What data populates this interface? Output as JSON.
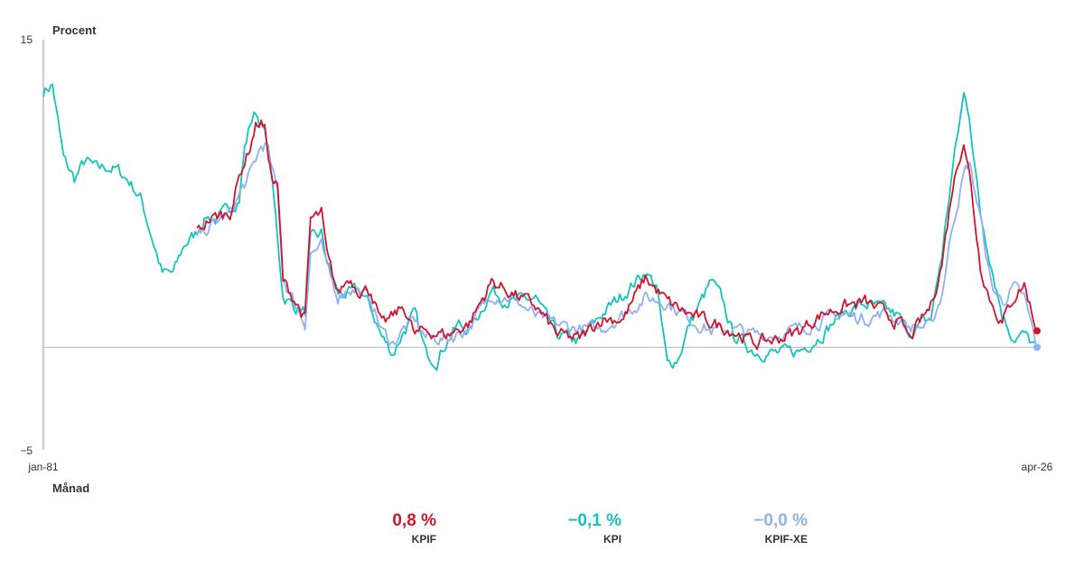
{
  "chart_data": {
    "type": "line",
    "ylabel": "Procent",
    "xlabel": "Månad",
    "ylim": [
      -5,
      15
    ],
    "y_ticks": [
      {
        "value": 15,
        "label": "15"
      },
      {
        "value": -5,
        "label": "−5"
      }
    ],
    "x_start": "1981-01",
    "x_end": "2026-04",
    "x_tick_labels": [
      "jan-81",
      "apr-26"
    ],
    "baseline": 0,
    "legend_placement": "bottom",
    "series": [
      {
        "name": "KPIF",
        "color": "#d0142c",
        "points": [
          [
            "1988-01",
            5.6
          ],
          [
            "1988-07",
            6.2
          ],
          [
            "1989-01",
            6.4
          ],
          [
            "1989-07",
            6.6
          ],
          [
            "1990-01",
            8.6
          ],
          [
            "1990-06",
            9.8
          ],
          [
            "1990-09",
            10.8
          ],
          [
            "1990-12",
            11.0
          ],
          [
            "1991-02",
            10.6
          ],
          [
            "1991-06",
            8.2
          ],
          [
            "1991-09",
            7.8
          ],
          [
            "1991-12",
            3.2
          ],
          [
            "1992-06",
            2.4
          ],
          [
            "1992-12",
            1.4
          ],
          [
            "1993-03",
            6.2
          ],
          [
            "1993-09",
            6.5
          ],
          [
            "1993-12",
            4.4
          ],
          [
            "1994-06",
            2.6
          ],
          [
            "1994-12",
            3.4
          ],
          [
            "1995-06",
            2.8
          ],
          [
            "1995-12",
            2.8
          ],
          [
            "1996-06",
            1.0
          ],
          [
            "1997-06",
            2.0
          ],
          [
            "1997-12",
            0.6
          ],
          [
            "1998-06",
            0.8
          ],
          [
            "1999-06",
            0.6
          ],
          [
            "2000-06",
            1.2
          ],
          [
            "2001-06",
            3.2
          ],
          [
            "2002-06",
            2.6
          ],
          [
            "2003-06",
            2.0
          ],
          [
            "2004-06",
            0.6
          ],
          [
            "2005-06",
            0.4
          ],
          [
            "2006-06",
            1.4
          ],
          [
            "2007-06",
            1.4
          ],
          [
            "2008-06",
            3.4
          ],
          [
            "2009-06",
            2.2
          ],
          [
            "2010-06",
            1.6
          ],
          [
            "2011-06",
            1.2
          ],
          [
            "2012-06",
            0.8
          ],
          [
            "2013-06",
            0.2
          ],
          [
            "2014-06",
            0.4
          ],
          [
            "2015-06",
            0.8
          ],
          [
            "2016-06",
            1.6
          ],
          [
            "2017-06",
            2.0
          ],
          [
            "2018-06",
            2.2
          ],
          [
            "2019-06",
            1.6
          ],
          [
            "2020-03",
            1.0
          ],
          [
            "2020-06",
            0.4
          ],
          [
            "2021-06",
            2.0
          ],
          [
            "2021-12",
            4.1
          ],
          [
            "2022-06",
            7.9
          ],
          [
            "2022-12",
            10.2
          ],
          [
            "2023-03",
            8.5
          ],
          [
            "2023-09",
            4.0
          ],
          [
            "2024-03",
            2.2
          ],
          [
            "2024-09",
            1.2
          ],
          [
            "2025-03",
            2.4
          ],
          [
            "2025-09",
            3.1
          ],
          [
            "2026-04",
            0.8
          ]
        ]
      },
      {
        "name": "KPI",
        "color": "#14c3bd",
        "points": [
          [
            "1981-01",
            12.5
          ],
          [
            "1981-06",
            12.8
          ],
          [
            "1981-12",
            9.2
          ],
          [
            "1982-06",
            8.2
          ],
          [
            "1982-12",
            9.1
          ],
          [
            "1983-06",
            8.7
          ],
          [
            "1983-12",
            8.8
          ],
          [
            "1984-06",
            8.6
          ],
          [
            "1984-12",
            8.1
          ],
          [
            "1985-06",
            7.3
          ],
          [
            "1985-12",
            5.5
          ],
          [
            "1986-06",
            3.6
          ],
          [
            "1986-12",
            3.6
          ],
          [
            "1987-06",
            5.0
          ],
          [
            "1987-12",
            5.5
          ],
          [
            "1988-06",
            6.4
          ],
          [
            "1988-12",
            6.2
          ],
          [
            "1989-06",
            6.7
          ],
          [
            "1989-12",
            7.3
          ],
          [
            "1990-03",
            9.7
          ],
          [
            "1990-06",
            10.9
          ],
          [
            "1990-09",
            11.5
          ],
          [
            "1990-12",
            10.9
          ],
          [
            "1991-03",
            10.1
          ],
          [
            "1991-06",
            8.1
          ],
          [
            "1991-12",
            2.5
          ],
          [
            "1992-06",
            2.0
          ],
          [
            "1992-12",
            1.7
          ],
          [
            "1993-03",
            5.2
          ],
          [
            "1993-09",
            5.5
          ],
          [
            "1993-12",
            4.2
          ],
          [
            "1994-06",
            2.6
          ],
          [
            "1994-12",
            2.6
          ],
          [
            "1995-06",
            2.8
          ],
          [
            "1995-12",
            1.9
          ],
          [
            "1996-06",
            0.5
          ],
          [
            "1996-12",
            -0.3
          ],
          [
            "1997-06",
            0.8
          ],
          [
            "1997-12",
            1.6
          ],
          [
            "1998-06",
            -0.3
          ],
          [
            "1998-12",
            -0.6
          ],
          [
            "1999-06",
            0.4
          ],
          [
            "1999-12",
            1.1
          ],
          [
            "2000-06",
            0.8
          ],
          [
            "2001-06",
            2.8
          ],
          [
            "2001-12",
            2.4
          ],
          [
            "2002-06",
            2.2
          ],
          [
            "2003-06",
            2.4
          ],
          [
            "2003-12",
            1.4
          ],
          [
            "2004-06",
            0.6
          ],
          [
            "2005-06",
            0.3
          ],
          [
            "2006-06",
            1.6
          ],
          [
            "2007-06",
            2.6
          ],
          [
            "2008-06",
            3.7
          ],
          [
            "2008-12",
            3.0
          ],
          [
            "2009-06",
            -0.9
          ],
          [
            "2009-12",
            -0.5
          ],
          [
            "2010-06",
            1.1
          ],
          [
            "2011-06",
            3.2
          ],
          [
            "2011-12",
            2.3
          ],
          [
            "2012-06",
            0.6
          ],
          [
            "2013-06",
            -0.2
          ],
          [
            "2014-06",
            -0.3
          ],
          [
            "2015-06",
            -0.2
          ],
          [
            "2016-06",
            0.6
          ],
          [
            "2017-06",
            1.7
          ],
          [
            "2018-06",
            2.1
          ],
          [
            "2019-06",
            1.8
          ],
          [
            "2019-12",
            1.5
          ],
          [
            "2020-06",
            0.7
          ],
          [
            "2021-06",
            1.4
          ],
          [
            "2021-12",
            4.5
          ],
          [
            "2022-06",
            8.8
          ],
          [
            "2022-12",
            12.3
          ],
          [
            "2023-03",
            11.4
          ],
          [
            "2023-09",
            6.5
          ],
          [
            "2024-03",
            4.1
          ],
          [
            "2024-09",
            1.6
          ],
          [
            "2025-03",
            0.5
          ],
          [
            "2025-09",
            0.6
          ],
          [
            "2026-04",
            -0.1
          ]
        ]
      },
      {
        "name": "KPIF-XE",
        "color": "#8fb0f4",
        "points": [
          [
            "1988-01",
            5.4
          ],
          [
            "1988-07",
            5.8
          ],
          [
            "1989-01",
            6.2
          ],
          [
            "1989-07",
            6.5
          ],
          [
            "1990-01",
            7.6
          ],
          [
            "1990-06",
            8.4
          ],
          [
            "1990-09",
            9.1
          ],
          [
            "1990-12",
            9.8
          ],
          [
            "1991-03",
            9.9
          ],
          [
            "1991-06",
            8.6
          ],
          [
            "1991-09",
            7.5
          ],
          [
            "1991-12",
            3.4
          ],
          [
            "1992-06",
            2.2
          ],
          [
            "1992-12",
            1.2
          ],
          [
            "1993-03",
            4.6
          ],
          [
            "1993-09",
            4.9
          ],
          [
            "1993-12",
            3.8
          ],
          [
            "1994-06",
            2.5
          ],
          [
            "1994-12",
            2.9
          ],
          [
            "1995-06",
            2.7
          ],
          [
            "1995-12",
            2.3
          ],
          [
            "1996-06",
            0.8
          ],
          [
            "1996-12",
            0.2
          ],
          [
            "1997-06",
            0.9
          ],
          [
            "1997-12",
            1.3
          ],
          [
            "1998-06",
            0.5
          ],
          [
            "1999-06",
            0.4
          ],
          [
            "2000-06",
            1.0
          ],
          [
            "2001-06",
            2.6
          ],
          [
            "2002-06",
            2.4
          ],
          [
            "2003-06",
            1.5
          ],
          [
            "2004-06",
            1.1
          ],
          [
            "2005-06",
            0.9
          ],
          [
            "2006-06",
            0.9
          ],
          [
            "2007-06",
            1.6
          ],
          [
            "2008-06",
            2.4
          ],
          [
            "2009-06",
            2.2
          ],
          [
            "2010-06",
            1.4
          ],
          [
            "2011-06",
            0.8
          ],
          [
            "2012-06",
            0.9
          ],
          [
            "2013-06",
            0.6
          ],
          [
            "2014-06",
            0.6
          ],
          [
            "2015-06",
            0.9
          ],
          [
            "2016-06",
            1.3
          ],
          [
            "2017-06",
            1.6
          ],
          [
            "2018-06",
            1.4
          ],
          [
            "2019-06",
            1.7
          ],
          [
            "2020-06",
            1.0
          ],
          [
            "2021-06",
            1.0
          ],
          [
            "2021-12",
            2.6
          ],
          [
            "2022-06",
            6.1
          ],
          [
            "2022-12",
            8.4
          ],
          [
            "2023-03",
            9.0
          ],
          [
            "2023-09",
            6.3
          ],
          [
            "2024-03",
            3.0
          ],
          [
            "2024-09",
            2.2
          ],
          [
            "2025-03",
            2.9
          ],
          [
            "2025-09",
            2.4
          ],
          [
            "2026-04",
            0.0
          ]
        ]
      }
    ]
  },
  "legend": [
    {
      "value": "0,8 %",
      "name": "KPIF",
      "color": "#d0142c"
    },
    {
      "value": "−0,1 %",
      "name": "KPI",
      "color": "#14c3bd"
    },
    {
      "value": "−0,0 %",
      "name": "KPIF-XE",
      "color": "#8fb0f4"
    }
  ]
}
